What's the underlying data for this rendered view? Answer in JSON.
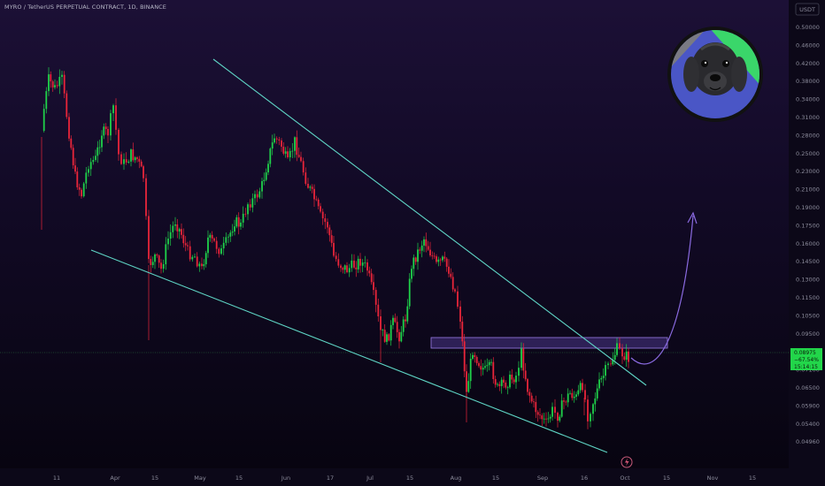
{
  "chart_data": {
    "type": "candlestick",
    "title": "MYRO / TetherUS PERPETUAL CONTRACT, 1D, BINANCE",
    "currency": "USDT",
    "y_scale": "log",
    "y_ticks": [
      "0.50000",
      "0.46000",
      "0.42000",
      "0.38000",
      "0.34000",
      "0.31000",
      "0.28000",
      "0.25000",
      "0.23000",
      "0.21000",
      "0.19000",
      "0.17500",
      "0.16000",
      "0.14500",
      "0.13000",
      "0.11500",
      "0.10500",
      "0.09500",
      "0.07900",
      "0.07100",
      "0.06500",
      "0.05900",
      "0.05400",
      "0.04960"
    ],
    "x_ticks": [
      "11",
      "Apr",
      "15",
      "May",
      "15",
      "Jun",
      "17",
      "Jul",
      "15",
      "Aug",
      "15",
      "Sep",
      "16",
      "Oct",
      "15",
      "Nov",
      "15"
    ],
    "last_price": {
      "value": "0.08975",
      "change": "−67.54%",
      "countdown": "15:14:15"
    },
    "grid": false,
    "colors": {
      "up": "#1fd14a",
      "down": "#e8253a",
      "trendline": "#5fd6c6",
      "zone": "#7a5cc8",
      "arrow": "#8a6ae0"
    },
    "annotations": [
      "descending-upper-trendline",
      "descending-lower-trendline",
      "resistance-zone-0.092-0.097",
      "projected-up-arrow"
    ],
    "icon": "dog-avatar-icon"
  },
  "ui": {
    "lightning_icon": "lightning-icon"
  }
}
